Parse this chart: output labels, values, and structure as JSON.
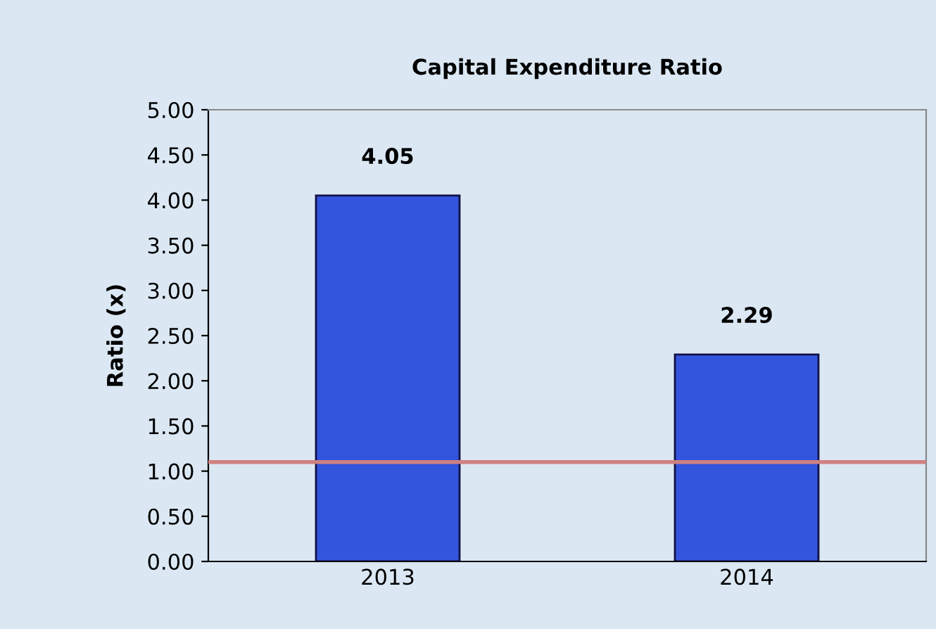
{
  "chart_data": {
    "type": "bar",
    "title": "Capital Expenditure Ratio",
    "ylabel": "Ratio (x)",
    "categories": [
      "2013",
      "2014"
    ],
    "values": [
      4.05,
      2.29
    ],
    "color": "#3355dd",
    "data_labels": true,
    "ylim": [
      0,
      5
    ],
    "yticks": [
      {
        "value": 0,
        "label": "0.00"
      },
      {
        "value": 0.5,
        "label": "0.50"
      },
      {
        "value": 1,
        "label": "1.00"
      },
      {
        "value": 1.5,
        "label": "1.50"
      },
      {
        "value": 2,
        "label": "2.00"
      },
      {
        "value": 2.5,
        "label": "2.50"
      },
      {
        "value": 3,
        "label": "3.00"
      },
      {
        "value": 3.5,
        "label": "3.50"
      },
      {
        "value": 4,
        "label": "4.00"
      },
      {
        "value": 4.5,
        "label": "4.50"
      },
      {
        "value": 5,
        "label": "5.00"
      }
    ],
    "ref_lines": [
      {
        "axis": "y",
        "value": 1.1,
        "color": "#d08080"
      }
    ],
    "grid": false,
    "legend": false
  }
}
